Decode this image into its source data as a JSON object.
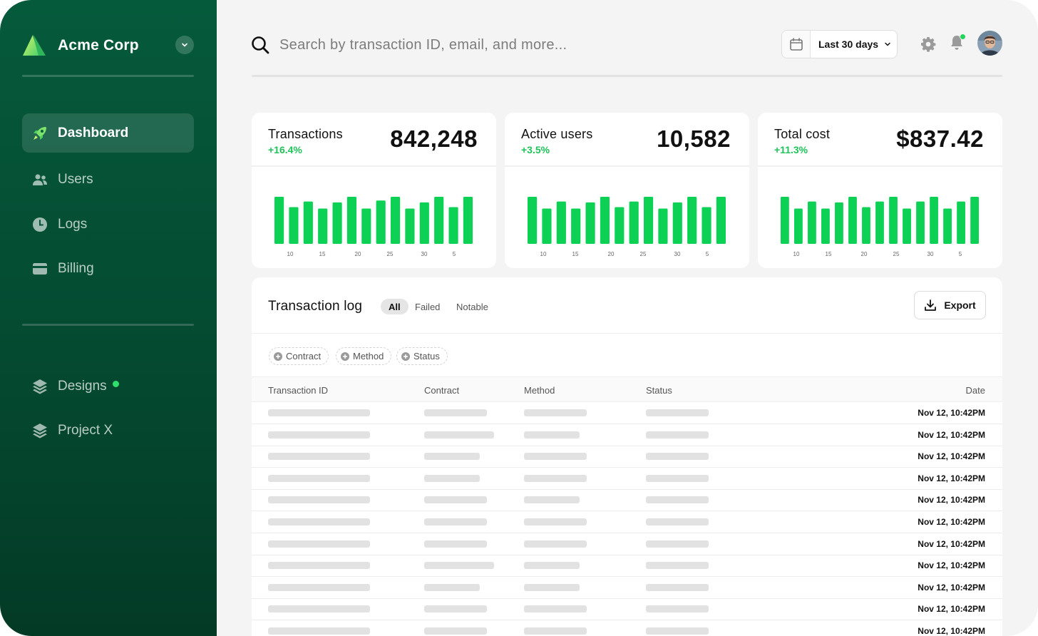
{
  "brand": {
    "name": "Acme Corp"
  },
  "sidebar": {
    "primary": [
      {
        "label": "Dashboard",
        "icon": "rocket-icon",
        "active": true
      },
      {
        "label": "Users",
        "icon": "users-icon"
      },
      {
        "label": "Logs",
        "icon": "clock-icon"
      },
      {
        "label": "Billing",
        "icon": "credit-card-icon"
      }
    ],
    "projects": [
      {
        "label": "Designs",
        "icon": "layers-icon",
        "badge_color": "#2ee06a"
      },
      {
        "label": "Project X",
        "icon": "layers-icon"
      }
    ]
  },
  "header": {
    "search_placeholder": "Search by transaction ID, email, and more...",
    "date_range": "Last 30 days"
  },
  "colors": {
    "sidebar": "#065a3c",
    "accent": "#0dd155",
    "positive": "#1ec35a"
  },
  "cards": [
    {
      "title": "Transactions",
      "delta": "+16.4%",
      "value": "842,248"
    },
    {
      "title": "Active users",
      "delta": "+3.5%",
      "value": "10,582"
    },
    {
      "title": "Total cost",
      "delta": "+11.3%",
      "value": "$837.42"
    }
  ],
  "chart_data": [
    {
      "type": "bar",
      "x_ticks": [
        "10",
        "15",
        "20",
        "25",
        "30",
        "5"
      ],
      "values": [
        100,
        78,
        90,
        75,
        88,
        100,
        75,
        92,
        100,
        75,
        88,
        100,
        78,
        100
      ]
    },
    {
      "type": "bar",
      "x_ticks": [
        "10",
        "15",
        "20",
        "25",
        "30",
        "5"
      ],
      "values": [
        100,
        75,
        90,
        75,
        88,
        100,
        78,
        90,
        100,
        75,
        88,
        100,
        78,
        100
      ]
    },
    {
      "type": "bar",
      "x_ticks": [
        "10",
        "15",
        "20",
        "25",
        "30",
        "5"
      ],
      "values": [
        100,
        75,
        90,
        75,
        88,
        100,
        78,
        90,
        100,
        75,
        90,
        100,
        75,
        90,
        100
      ]
    }
  ],
  "log": {
    "title": "Transaction log",
    "tabs": [
      "All",
      "Failed",
      "Notable"
    ],
    "export_label": "Export",
    "filters": [
      "Contract",
      "Method",
      "Status"
    ],
    "columns": [
      "Transaction ID",
      "Contract",
      "Method",
      "Status",
      "Date"
    ],
    "rows": [
      {
        "date": "Nov 12, 10:42PM"
      },
      {
        "date": "Nov 12, 10:42PM"
      },
      {
        "date": "Nov 12, 10:42PM"
      },
      {
        "date": "Nov 12, 10:42PM"
      },
      {
        "date": "Nov 12, 10:42PM"
      },
      {
        "date": "Nov 12, 10:42PM"
      },
      {
        "date": "Nov 12, 10:42PM"
      },
      {
        "date": "Nov 12, 10:42PM"
      },
      {
        "date": "Nov 12, 10:42PM"
      },
      {
        "date": "Nov 12, 10:42PM"
      },
      {
        "date": "Nov 12, 10:42PM"
      }
    ]
  }
}
